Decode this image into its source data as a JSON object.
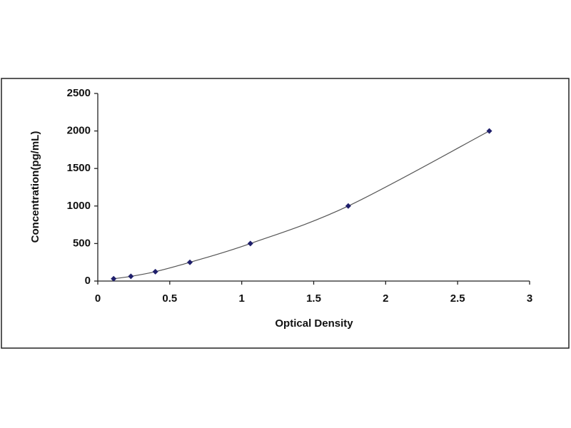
{
  "chart_data": {
    "type": "scatter",
    "x_label": "Optical Density",
    "y_label": "Concentration(pg/mL)",
    "series": [
      {
        "x": [
          0.11,
          0.23,
          0.4,
          0.64,
          1.06,
          1.74,
          2.72
        ],
        "values": [
          31.25,
          62.5,
          125,
          250,
          500,
          1000,
          2000
        ],
        "color": "#1f1f6b"
      }
    ],
    "xlim": [
      0,
      3
    ],
    "xticks": [
      0,
      0.5,
      1,
      1.5,
      2,
      2.5,
      3
    ],
    "ylim": [
      0,
      2500
    ],
    "yticks": [
      0,
      500,
      1000,
      1500,
      2000,
      2500
    ],
    "grid": false,
    "smooth_line": true
  }
}
